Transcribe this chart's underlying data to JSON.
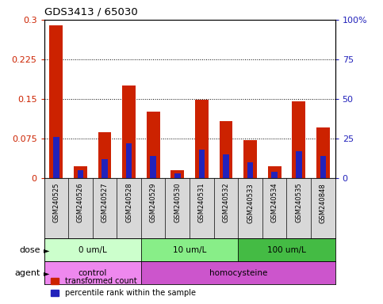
{
  "title": "GDS3413 / 65030",
  "samples": [
    "GSM240525",
    "GSM240526",
    "GSM240527",
    "GSM240528",
    "GSM240529",
    "GSM240530",
    "GSM240531",
    "GSM240532",
    "GSM240533",
    "GSM240534",
    "GSM240535",
    "GSM240848"
  ],
  "transformed_count": [
    0.29,
    0.022,
    0.087,
    0.175,
    0.125,
    0.015,
    0.148,
    0.108,
    0.072,
    0.022,
    0.145,
    0.095
  ],
  "percentile_rank": [
    26,
    5,
    12,
    22,
    14,
    3,
    18,
    15,
    10,
    4,
    17,
    14
  ],
  "red_color": "#cc2200",
  "blue_color": "#2222bb",
  "ylim_left": [
    0,
    0.3
  ],
  "ylim_right": [
    0,
    100
  ],
  "yticks_left": [
    0,
    0.075,
    0.15,
    0.225,
    0.3
  ],
  "yticks_right": [
    0,
    25,
    50,
    75,
    100
  ],
  "ytick_labels_left": [
    "0",
    "0.075",
    "0.15",
    "0.225",
    "0.3"
  ],
  "ytick_labels_right": [
    "0",
    "25",
    "50",
    "75",
    "100%"
  ],
  "dose_groups": [
    {
      "label": "0 um/L",
      "start": 0,
      "end": 4,
      "color": "#ccffcc"
    },
    {
      "label": "10 um/L",
      "start": 4,
      "end": 8,
      "color": "#88ee88"
    },
    {
      "label": "100 um/L",
      "start": 8,
      "end": 12,
      "color": "#44bb44"
    }
  ],
  "agent_groups": [
    {
      "label": "control",
      "start": 0,
      "end": 4,
      "color": "#ee88ee"
    },
    {
      "label": "homocysteine",
      "start": 4,
      "end": 12,
      "color": "#cc55cc"
    }
  ],
  "bar_width": 0.55,
  "blue_bar_width": 0.25,
  "background_color": "#ffffff",
  "label_bg_color": "#d8d8d8",
  "grid_color": "#000000"
}
